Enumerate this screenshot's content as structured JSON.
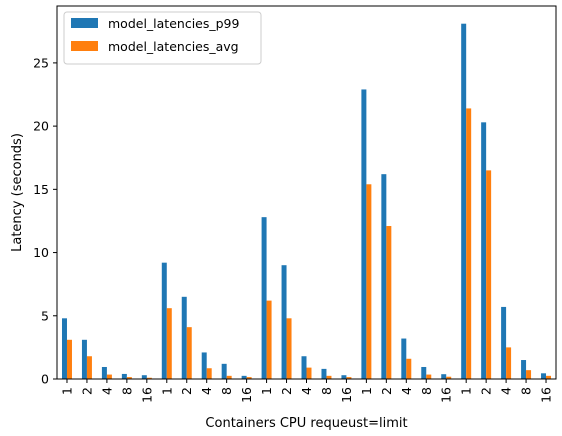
{
  "chart_data": {
    "type": "bar",
    "xlabel": "Containers CPU requeust=limit",
    "ylabel": "Latency (seconds)",
    "ylim": [
      0,
      29.5
    ],
    "yticks": [
      0,
      5,
      10,
      15,
      20,
      25
    ],
    "grid": false,
    "legend_position": "top-left",
    "categories": [
      "1",
      "2",
      "4",
      "8",
      "16",
      "1",
      "2",
      "4",
      "8",
      "16",
      "1",
      "2",
      "4",
      "8",
      "16",
      "1",
      "2",
      "4",
      "8",
      "16",
      "1",
      "2",
      "4",
      "8",
      "16"
    ],
    "series": [
      {
        "name": "model_latencies_p99",
        "color": "#1f77b4",
        "values": [
          4.8,
          3.1,
          0.95,
          0.4,
          0.3,
          9.2,
          6.5,
          2.1,
          1.2,
          0.25,
          12.8,
          9.0,
          1.8,
          0.8,
          0.3,
          22.9,
          16.2,
          3.2,
          0.95,
          0.38,
          28.1,
          20.3,
          5.7,
          1.5,
          0.45
        ]
      },
      {
        "name": "model_latencies_avg",
        "color": "#ff7f0e",
        "values": [
          3.1,
          1.8,
          0.35,
          0.15,
          0.1,
          5.6,
          4.1,
          0.85,
          0.25,
          0.15,
          6.2,
          4.8,
          0.9,
          0.25,
          0.15,
          15.4,
          12.1,
          1.6,
          0.35,
          0.18,
          21.4,
          16.5,
          2.5,
          0.7,
          0.25
        ]
      }
    ]
  }
}
